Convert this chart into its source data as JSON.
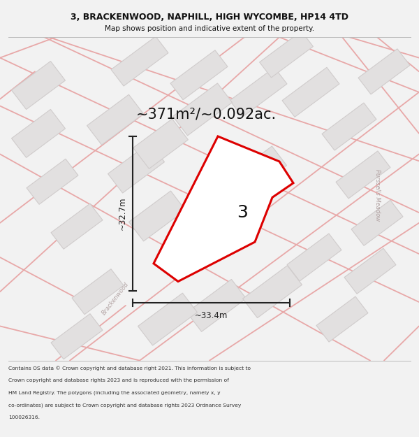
{
  "title_line1": "3, BRACKENWOOD, NAPHILL, HIGH WYCOMBE, HP14 4TD",
  "title_line2": "Map shows position and indicative extent of the property.",
  "area_text": "~371m²/~0.092ac.",
  "dim_height": "~32.7m",
  "dim_width": "~33.4m",
  "plot_label": "3",
  "footer_lines": [
    "Contains OS data © Crown copyright and database right 2021. This information is subject to",
    "Crown copyright and database rights 2023 and is reproduced with the permission of",
    "HM Land Registry. The polygons (including the associated geometry, namely x, y",
    "co-ordinates) are subject to Crown copyright and database rights 2023 Ordnance Survey",
    "100026316."
  ],
  "bg_color": "#f2f2f2",
  "map_bg": "#eeecec",
  "plot_outline_color": "#dd0000",
  "plot_fill_color": "#ffffff",
  "road_color": "#e8a8a8",
  "building_color": "#e2e0e0",
  "building_outline": "#d0cccc",
  "dim_line_color": "#222222",
  "text_color": "#111111",
  "road_label_color": "#b0a0a0"
}
